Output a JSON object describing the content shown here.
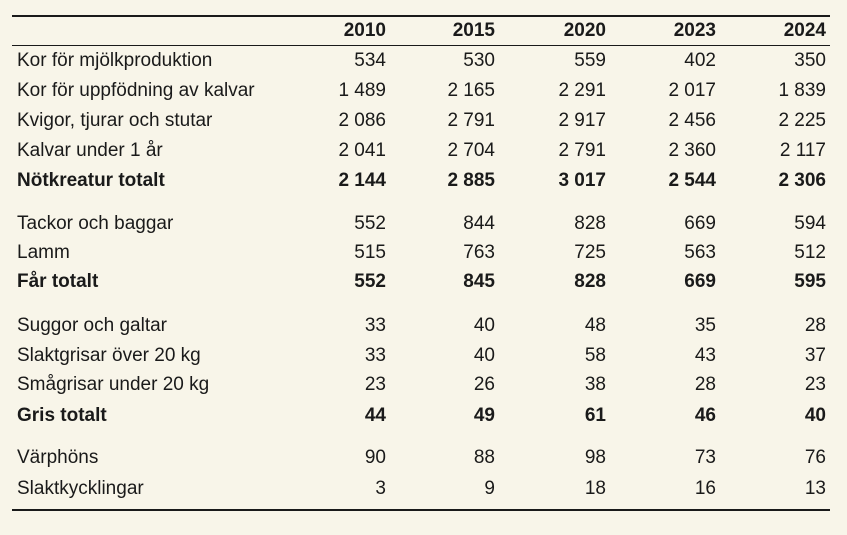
{
  "columns": [
    "2010",
    "2015",
    "2020",
    "2023",
    "2024"
  ],
  "rows": [
    {
      "label": "Kor för mjölkproduktion",
      "values": [
        "534",
        "530",
        "559",
        "402",
        "350"
      ]
    },
    {
      "label": "Kor för uppfödning av kalvar",
      "values": [
        "1 489",
        "2 165",
        "2 291",
        "2 017",
        "1 839"
      ]
    },
    {
      "label": "Kvigor, tjurar och stutar",
      "values": [
        "2 086",
        "2 791",
        "2 917",
        "2 456",
        "2 225"
      ]
    },
    {
      "label": "Kalvar under 1 år",
      "values": [
        "2 041",
        "2 704",
        "2 791",
        "2 360",
        "2 117"
      ]
    },
    {
      "label": "Nötkreatur totalt",
      "values": [
        "2 144",
        "2 885",
        "3 017",
        "2 544",
        "2 306"
      ]
    },
    {
      "label": "Tackor och baggar",
      "values": [
        "552",
        "844",
        "828",
        "669",
        "594"
      ]
    },
    {
      "label": "Lamm",
      "values": [
        "515",
        "763",
        "725",
        "563",
        "512"
      ]
    },
    {
      "label": "Får totalt",
      "values": [
        "552",
        "845",
        "828",
        "669",
        "595"
      ]
    },
    {
      "label": "Suggor och galtar",
      "values": [
        "33",
        "40",
        "48",
        "35",
        "28"
      ]
    },
    {
      "label": "Slaktgrisar över 20 kg",
      "values": [
        "33",
        "40",
        "58",
        "43",
        "37"
      ]
    },
    {
      "label": "Smågrisar under 20 kg",
      "values": [
        "23",
        "26",
        "38",
        "28",
        "23"
      ]
    },
    {
      "label": "Gris totalt",
      "values": [
        "44",
        "49",
        "61",
        "46",
        "40"
      ]
    },
    {
      "label": "Värphöns",
      "values": [
        "90",
        "88",
        "98",
        "73",
        "76"
      ]
    },
    {
      "label": "Slaktkycklingar",
      "values": [
        "3",
        "9",
        "18",
        "16",
        "13"
      ]
    }
  ]
}
